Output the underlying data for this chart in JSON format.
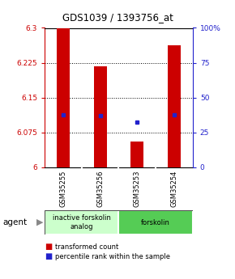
{
  "title": "GDS1039 / 1393756_at",
  "samples": [
    "GSM35255",
    "GSM35256",
    "GSM35253",
    "GSM35254"
  ],
  "bar_values": [
    6.3,
    6.218,
    6.055,
    6.263
  ],
  "bar_base": 6.0,
  "blue_dot_values": [
    6.113,
    6.112,
    6.098,
    6.113
  ],
  "ylim": [
    6.0,
    6.3
  ],
  "yticks_left": [
    6.0,
    6.075,
    6.15,
    6.225,
    6.3
  ],
  "ytick_labels_left": [
    "6",
    "6.075",
    "6.15",
    "6.225",
    "6.3"
  ],
  "ytick_labels_right": [
    "0",
    "25",
    "50",
    "75",
    "100%"
  ],
  "bar_color": "#cc0000",
  "dot_color": "#2222cc",
  "bar_width": 0.35,
  "groups": [
    {
      "label": "inactive forskolin\nanalog",
      "samples": [
        0,
        1
      ],
      "color": "#ccffcc"
    },
    {
      "label": "forskolin",
      "samples": [
        2,
        3
      ],
      "color": "#55cc55"
    }
  ],
  "legend_items": [
    {
      "color": "#cc0000",
      "label": "transformed count"
    },
    {
      "color": "#2222cc",
      "label": "percentile rank within the sample"
    }
  ],
  "agent_label": "agent",
  "background_color": "#ffffff",
  "plot_bg_color": "#ffffff",
  "sample_box_color": "#cccccc",
  "grid_color": "#000000",
  "left_tick_color": "#cc0000",
  "right_tick_color": "#2222cc",
  "border_color": "#000000"
}
